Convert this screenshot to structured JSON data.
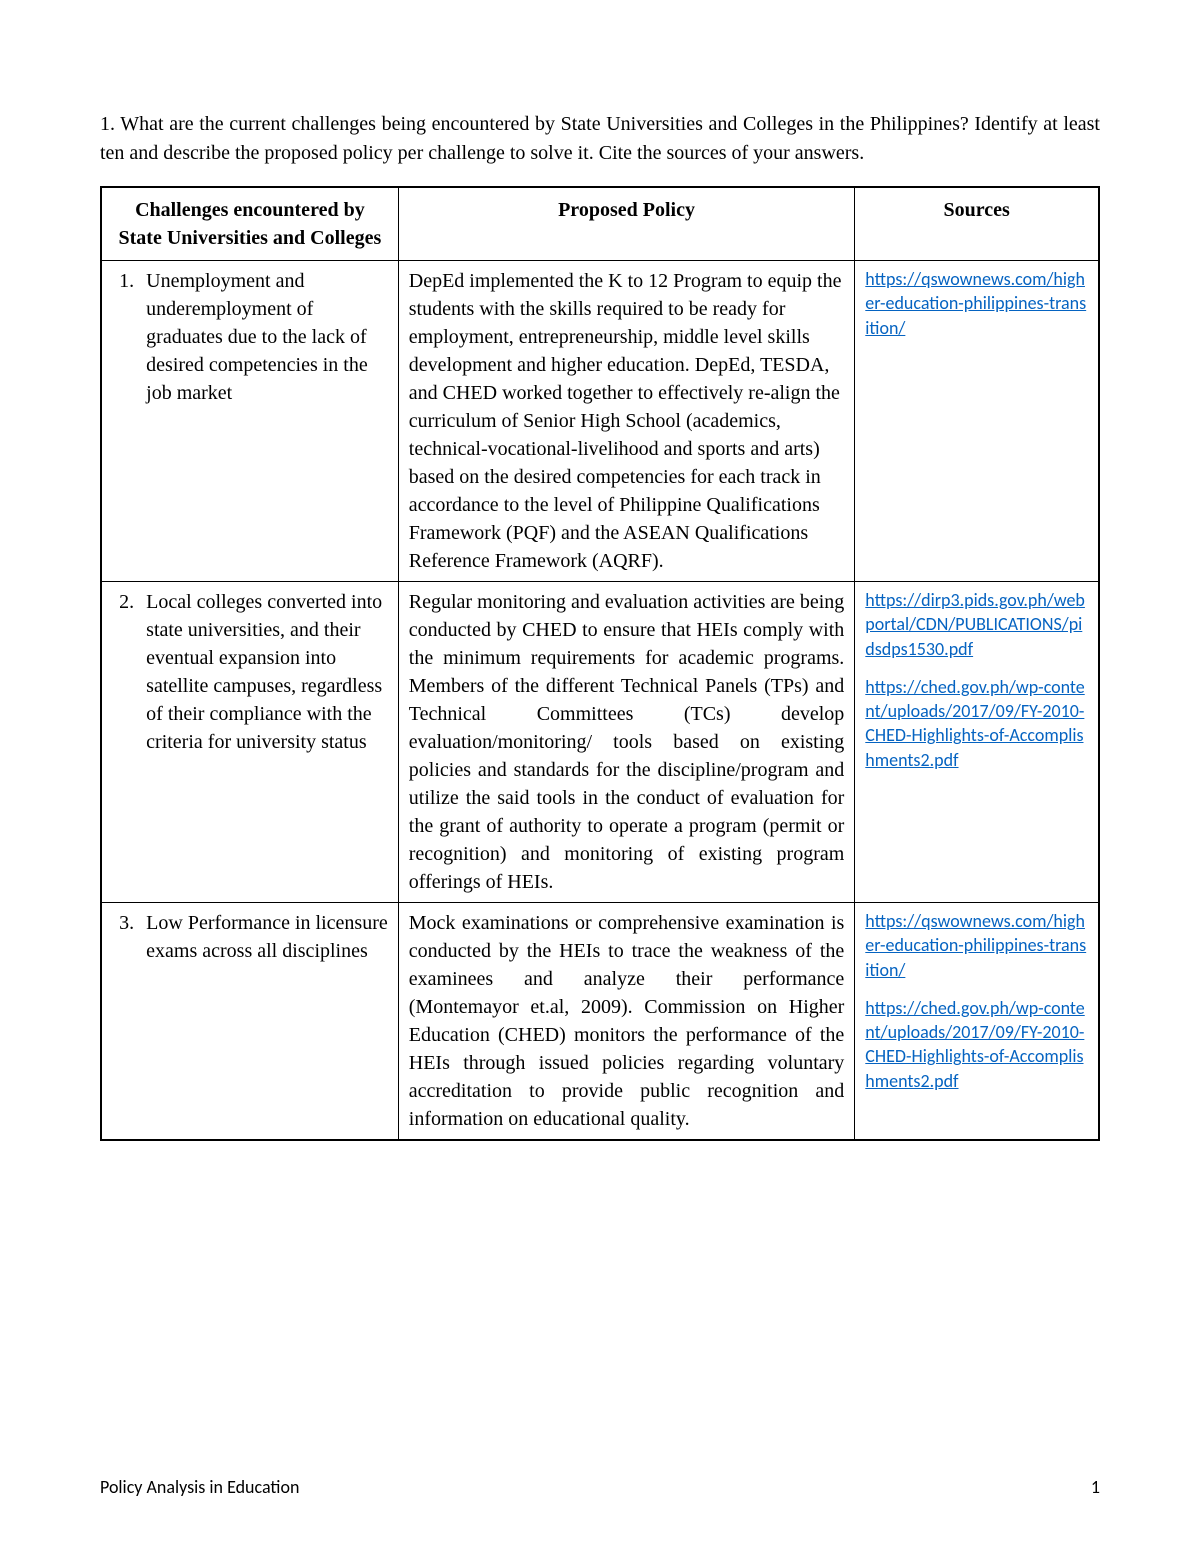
{
  "question": "1. What are the current challenges being encountered by State Universities and Colleges in the Philippines? Identify at least ten and describe the proposed policy per challenge to solve it. Cite the sources of your answers.",
  "table": {
    "headers": {
      "challenges": "Challenges encountered by State Universities and Colleges",
      "policy": "Proposed Policy",
      "sources": "Sources"
    },
    "rows": [
      {
        "num": "1.",
        "challenge": "Unemployment and underemployment of graduates due to the lack of desired competencies in the job market",
        "policy": "DepEd implemented the K to 12 Program to equip the students with the skills required to be ready for employment, entrepreneurship, middle level skills development and higher education. DepEd, TESDA, and CHED worked together to effectively re-align the curriculum of Senior High School (academics, technical-vocational-livelihood and sports and arts) based on the desired competencies for each track in accordance to the level of Philippine Qualifications Framework (PQF) and the ASEAN Qualifications Reference Framework (AQRF).",
        "policy_justify": false,
        "sources": [
          "https://qswownews.com/higher-education-philippines-transition/"
        ]
      },
      {
        "num": "2.",
        "challenge": "Local colleges converted into state universities, and their eventual expansion into satellite campuses, regardless of their compliance with the criteria for university status",
        "policy": "Regular monitoring and evaluation activities are being conducted by CHED to ensure that HEIs comply with the minimum requirements for academic programs. Members of the different Technical Panels (TPs) and Technical Committees (TCs) develop evaluation/monitoring/ tools based on existing policies and standards for the discipline/program and utilize the said tools in the conduct of evaluation for the grant of authority to operate a program (permit or recognition) and monitoring of existing program offerings of HEIs.",
        "policy_justify": true,
        "sources": [
          "https://dirp3.pids.gov.ph/webportal/CDN/PUBLICATIONS/pidsdps1530.pdf",
          "https://ched.gov.ph/wp-content/uploads/2017/09/FY-2010-CHED-Highlights-of-Accomplishments2.pdf"
        ]
      },
      {
        "num": "3.",
        "challenge": "Low Performance in licensure exams across all disciplines",
        "policy": "Mock examinations or comprehensive examination is conducted by the HEIs to trace the weakness of the examinees and analyze their performance (Montemayor et.al, 2009). Commission on Higher Education (CHED) monitors the performance of the HEIs through issued policies regarding voluntary accreditation to provide public recognition and information on educational quality.",
        "policy_justify": true,
        "sources": [
          "https://qswownews.com/higher-education-philippines-transition/",
          "https://ched.gov.ph/wp-content/uploads/2017/09/FY-2010-CHED-Highlights-of-Accomplishments2.pdf"
        ]
      }
    ]
  },
  "footer": {
    "title": "Policy Analysis in Education",
    "page": "1"
  },
  "styling": {
    "page_bg": "#ffffff",
    "text_color": "#000000",
    "link_color": "#0563c1",
    "border_color": "#000000",
    "body_font": "Times New Roman",
    "link_font": "Calibri",
    "body_fontsize": 20,
    "link_fontsize": 18,
    "footer_fontsize": 18
  }
}
